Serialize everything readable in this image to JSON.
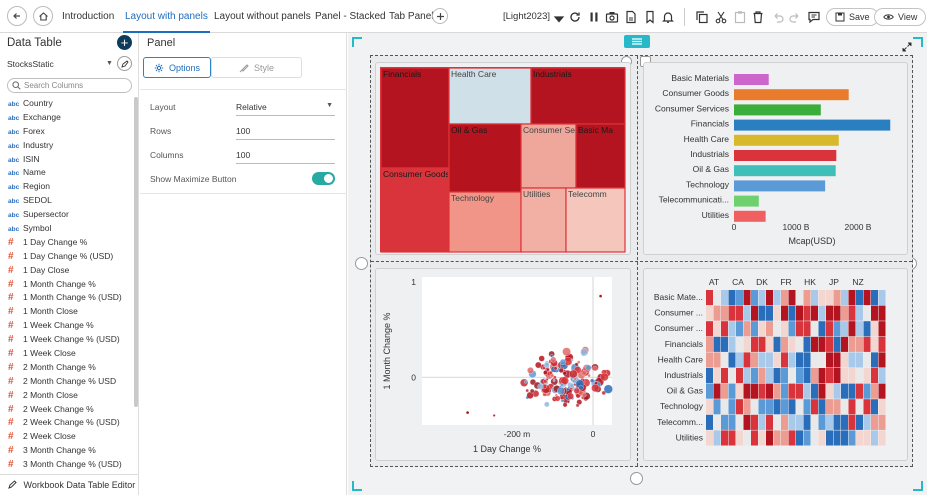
{
  "tabs": [
    {
      "label": "Introduction"
    },
    {
      "label": "Layout with panels"
    },
    {
      "label": "Layout without panels"
    },
    {
      "label": "Panel - Stacked"
    },
    {
      "label": "Tab Panel"
    }
  ],
  "toolbar": {
    "theme_label": "[Light2023]",
    "save_label": "Save",
    "view_label": "View"
  },
  "left_panel": {
    "title": "Data Table",
    "source_name": "StocksStatic",
    "search_placeholder": "Search Columns",
    "columns": [
      {
        "type": "abc",
        "name": "Country"
      },
      {
        "type": "abc",
        "name": "Exchange"
      },
      {
        "type": "abc",
        "name": "Forex"
      },
      {
        "type": "abc",
        "name": "Industry"
      },
      {
        "type": "abc",
        "name": "ISIN"
      },
      {
        "type": "abc",
        "name": "Name"
      },
      {
        "type": "abc",
        "name": "Region"
      },
      {
        "type": "abc",
        "name": "SEDOL"
      },
      {
        "type": "abc",
        "name": "Supersector"
      },
      {
        "type": "abc",
        "name": "Symbol"
      },
      {
        "type": "#",
        "name": "1 Day Change %"
      },
      {
        "type": "#",
        "name": "1 Day Change % (USD)"
      },
      {
        "type": "#",
        "name": "1 Day Close"
      },
      {
        "type": "#",
        "name": "1 Month Change %"
      },
      {
        "type": "#",
        "name": "1 Month Change % (USD)"
      },
      {
        "type": "#",
        "name": "1 Month Close"
      },
      {
        "type": "#",
        "name": "1 Week Change %"
      },
      {
        "type": "#",
        "name": "1 Week Change % (USD)"
      },
      {
        "type": "#",
        "name": "1 Week Close"
      },
      {
        "type": "#",
        "name": "2 Month Change %"
      },
      {
        "type": "#",
        "name": "2 Month Change % USD"
      },
      {
        "type": "#",
        "name": "2 Month Close"
      },
      {
        "type": "#",
        "name": "2 Week Change %"
      },
      {
        "type": "#",
        "name": "2 Week Change % (USD)"
      },
      {
        "type": "#",
        "name": "2 Week Close"
      },
      {
        "type": "#",
        "name": "3 Month Change %"
      },
      {
        "type": "#",
        "name": "3 Month Change % (USD)"
      }
    ],
    "footer": "Workbook Data Table Editor"
  },
  "panel_props": {
    "title": "Panel",
    "options_label": "Options",
    "style_label": "Style",
    "layout_label": "Layout",
    "layout_value": "Relative",
    "rows_label": "Rows",
    "rows_value": "100",
    "columns_label": "Columns",
    "columns_value": "100",
    "maximize_label": "Show Maximize Button",
    "maximize_on": true
  },
  "chart_data": [
    {
      "type": "treemap",
      "cells": [
        {
          "label": "Financials",
          "color": "#b3141f"
        },
        {
          "label": "Health Care",
          "color": "#cfe0e8"
        },
        {
          "label": "Industrials",
          "color": "#b3141f"
        },
        {
          "label": "Oil & Gas",
          "color": "#b5141f"
        },
        {
          "label": "Consumer Se",
          "color": "#f0a79b"
        },
        {
          "label": "Basic Ma",
          "color": "#b3141f"
        },
        {
          "label": "Consumer Goods",
          "color": "#d9333b"
        },
        {
          "label": "Technology",
          "color": "#f09587"
        },
        {
          "label": "Utilities",
          "color": "#f2b0a5"
        },
        {
          "label": "Telecomm",
          "color": "#f5c6bc"
        }
      ]
    },
    {
      "type": "bar",
      "orientation": "horizontal",
      "categories": [
        "Basic Materials",
        "Consumer Goods",
        "Consumer Services",
        "Financials",
        "Health Care",
        "Industrials",
        "Oil & Gas",
        "Technology",
        "Telecommunicati...",
        "Utilities"
      ],
      "values": [
        560,
        1850,
        1400,
        2520,
        1690,
        1650,
        1640,
        1470,
        400,
        510
      ],
      "colors": [
        "#cc66cc",
        "#e87c2c",
        "#3aad3a",
        "#2a7fc1",
        "#d9b92c",
        "#d9333b",
        "#40bfb8",
        "#5a9ad6",
        "#6ed06e",
        "#f06060"
      ],
      "xlabel": "Mcap(USD)",
      "xticks": [
        "0",
        "1000 B",
        "2000 B"
      ],
      "xlim": [
        0,
        2500
      ]
    },
    {
      "type": "scatter",
      "xlabel": "1 Day Change %",
      "ylabel": "1 Month Change %",
      "xticks": [
        "-200 m",
        "0"
      ],
      "yticks": [
        "1",
        "0"
      ],
      "xlim": [
        -0.45,
        0.05
      ],
      "ylim": [
        -0.5,
        1.05
      ]
    },
    {
      "type": "heatmap",
      "column_labels": [
        "AT",
        "CA",
        "DK",
        "FR",
        "HK",
        "JP",
        "NZ"
      ],
      "row_labels": [
        "Basic Mate...",
        "Consumer ...",
        "Consumer ...",
        "Financials",
        "Health Care",
        "Industrials",
        "Oil & Gas",
        "Technology",
        "Telecomm...",
        "Utilities"
      ]
    }
  ]
}
